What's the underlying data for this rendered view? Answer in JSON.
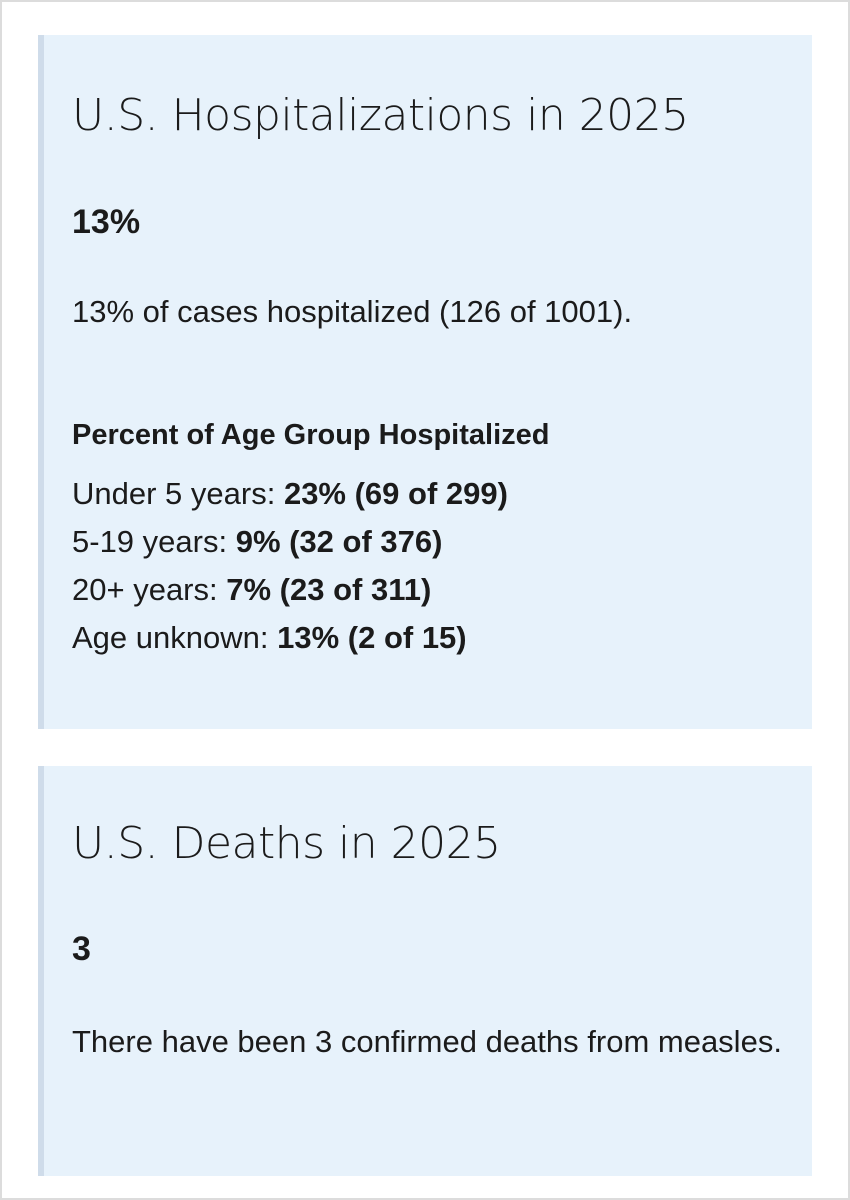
{
  "hospitalizations": {
    "title": "U.S. Hospitalizations in 2025",
    "stat": "13%",
    "summary": "13% of cases hospitalized (126 of 1001).",
    "age_heading": "Percent of Age Group Hospitalized",
    "age_groups": [
      {
        "label": "Under 5 years:",
        "value": "23% (69 of 299)"
      },
      {
        "label": "5-19 years:",
        "value": "9% (32 of 376)"
      },
      {
        "label": "20+ years:",
        "value": "7% (23 of 311)"
      },
      {
        "label": "Age unknown:",
        "value": "13% (2 of 15)"
      }
    ]
  },
  "deaths": {
    "title": "U.S. Deaths in 2025",
    "stat": "3",
    "summary": "There have been 3 confirmed deaths from measles."
  },
  "colors": {
    "card_background": "#e7f2fb",
    "card_accent_border": "#cfdcea",
    "page_border": "#dcdcdc",
    "text": "#1b1b1b"
  }
}
